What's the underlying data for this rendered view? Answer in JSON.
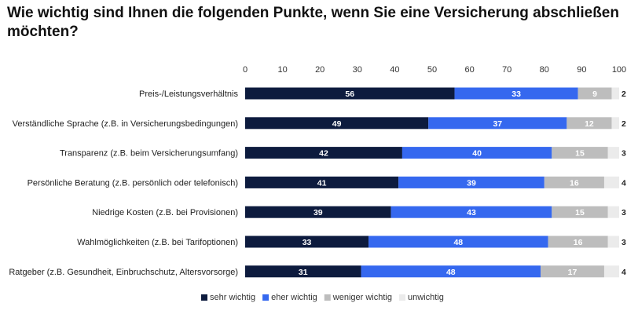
{
  "chart_data": {
    "type": "bar",
    "orientation": "horizontal",
    "stacked": true,
    "title": "Wie wichtig sind Ihnen die folgenden Punkte, wenn Sie eine Versicherung abschließen möchten?",
    "xlim": [
      0,
      100
    ],
    "x_ticks": [
      0,
      10,
      20,
      30,
      40,
      50,
      60,
      70,
      80,
      90,
      100
    ],
    "x_axis_position": "top",
    "grid": false,
    "legend_position": "bottom",
    "categories": [
      "Preis-/Leistungsverhältnis",
      "Verständliche Sprache (z.B. in Versicherungsbedingungen)",
      "Transparenz (z.B. beim Versicherungsumfang)",
      "Persönliche Beratung (z.B. persönlich oder telefonisch)",
      "Niedrige Kosten (z.B. bei Provisionen)",
      "Wahlmöglichkeiten (z.B. bei Tarifoptionen)",
      "Ratgeber (z.B. Gesundheit, Einbruchschutz, Altersvorsorge)"
    ],
    "series": [
      {
        "name": "sehr wichtig",
        "color": "#0d1b3e",
        "label_color": "#ffffff",
        "values": [
          56,
          49,
          42,
          41,
          39,
          33,
          31
        ]
      },
      {
        "name": "eher wichtig",
        "color": "#3568ef",
        "label_color": "#ffffff",
        "values": [
          33,
          37,
          40,
          39,
          43,
          48,
          48
        ]
      },
      {
        "name": "weniger wichtig",
        "color": "#bdbdbd",
        "label_color": "#ffffff",
        "values": [
          9,
          12,
          15,
          16,
          15,
          16,
          17
        ]
      },
      {
        "name": "unwichtig",
        "color": "#ebebeb",
        "label_color": "#222222",
        "values": [
          2,
          2,
          3,
          4,
          3,
          3,
          4
        ]
      }
    ]
  }
}
